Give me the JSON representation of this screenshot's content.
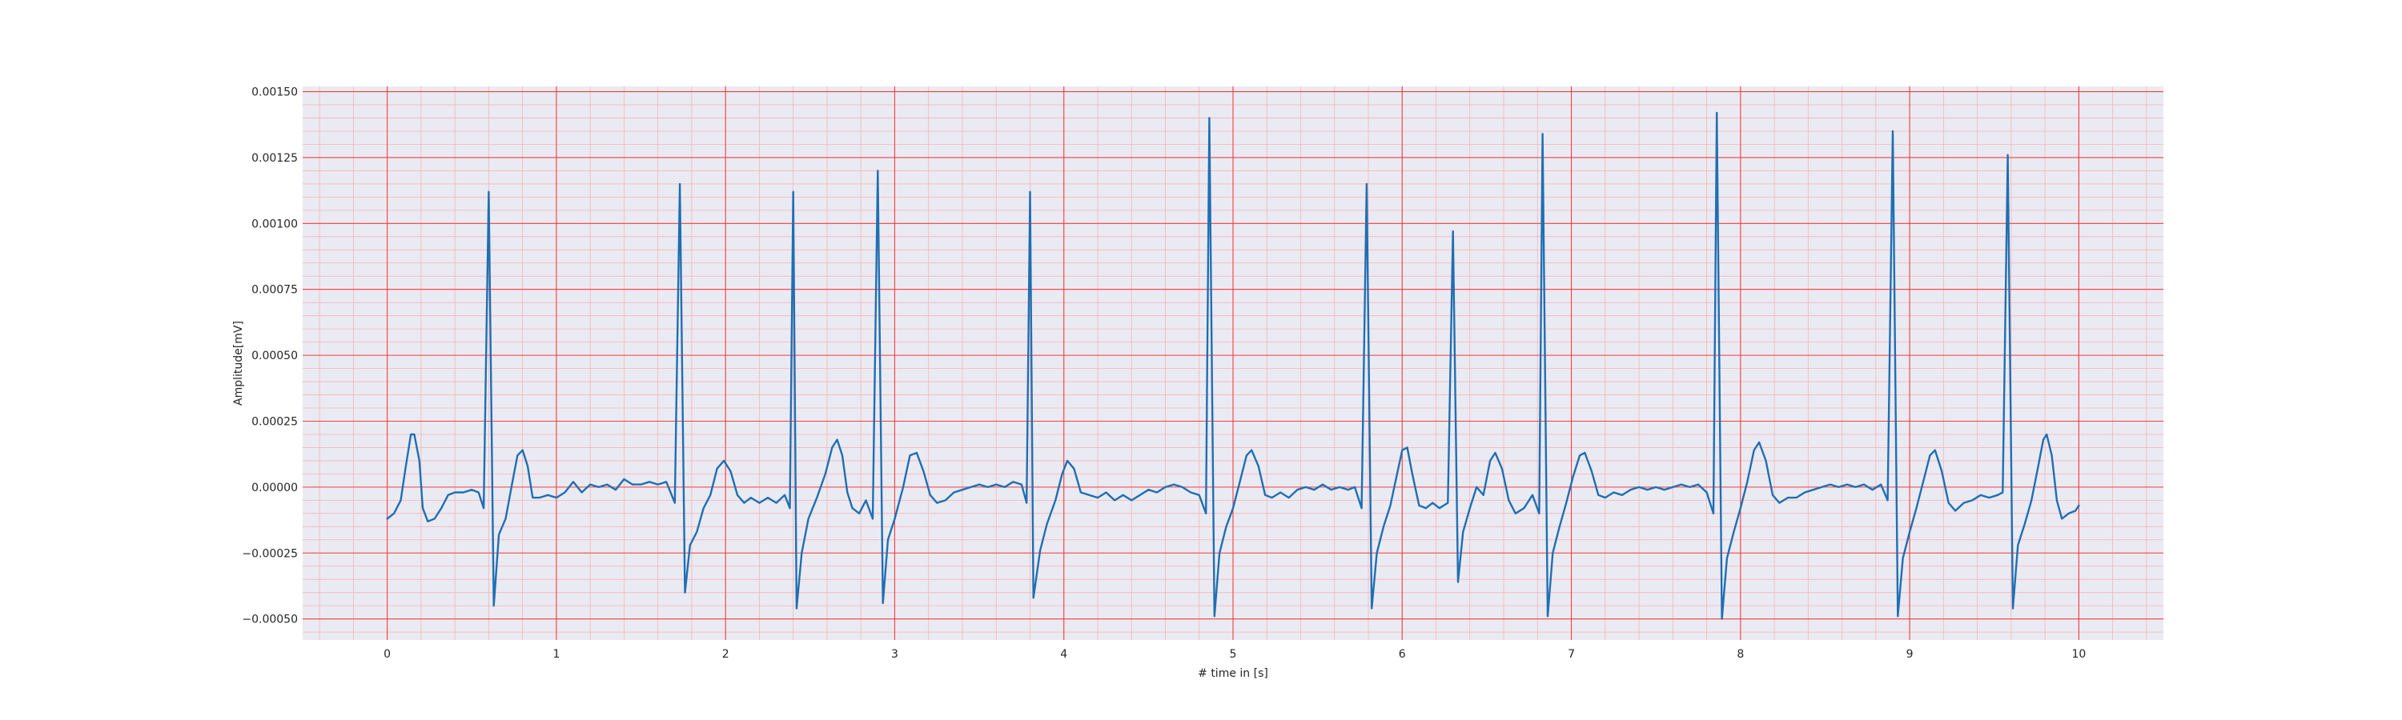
{
  "chart_data": {
    "type": "line",
    "title": "",
    "xlabel": "# time in [s]",
    "ylabel": "Amplitude[mV]",
    "xlim": [
      -0.5,
      10.5
    ],
    "ylim": [
      -0.00058,
      0.00152
    ],
    "x_ticks": [
      0,
      1,
      2,
      3,
      4,
      5,
      6,
      7,
      8,
      9,
      10
    ],
    "x_tick_labels": [
      "0",
      "1",
      "2",
      "3",
      "4",
      "5",
      "6",
      "7",
      "8",
      "9",
      "10"
    ],
    "y_ticks": [
      -0.0005,
      -0.00025,
      0.0,
      0.00025,
      0.0005,
      0.00075,
      0.001,
      0.00125,
      0.0015
    ],
    "y_tick_labels": [
      "−0.00050",
      "−0.00025",
      "0.00000",
      "0.00025",
      "0.00050",
      "0.00075",
      "0.00100",
      "0.00125",
      "0.00150"
    ],
    "grid": {
      "major": true,
      "minor": true,
      "major_color": "#f04040",
      "minor_color": "#f5b5b5"
    },
    "background_color": "#eaeaf2",
    "series": [
      {
        "color": "#1f6fb2",
        "points": [
          [
            0,
            -0.00012
          ],
          [
            0.04,
            -0.0001
          ],
          [
            0.08,
            -5e-05
          ],
          [
            0.11,
            8e-05
          ],
          [
            0.14,
            0.0002
          ],
          [
            0.16,
            0.0002
          ],
          [
            0.19,
            0.0001
          ],
          [
            0.21,
            -8e-05
          ],
          [
            0.24,
            -0.00013
          ],
          [
            0.28,
            -0.00012
          ],
          [
            0.32,
            -8e-05
          ],
          [
            0.36,
            -3e-05
          ],
          [
            0.4,
            -2e-05
          ],
          [
            0.45,
            -2e-05
          ],
          [
            0.5,
            -1e-05
          ],
          [
            0.54,
            -2e-05
          ],
          [
            0.57,
            -8e-05
          ],
          [
            0.6,
            0.00112
          ],
          [
            0.63,
            -0.00045
          ],
          [
            0.66,
            -0.00018
          ],
          [
            0.7,
            -0.00012
          ],
          [
            0.74,
            2e-05
          ],
          [
            0.77,
            0.00012
          ],
          [
            0.8,
            0.00014
          ],
          [
            0.83,
            8e-05
          ],
          [
            0.86,
            -4e-05
          ],
          [
            0.9,
            -4e-05
          ],
          [
            0.95,
            -3e-05
          ],
          [
            1.0,
            -4e-05
          ],
          [
            1.05,
            -2e-05
          ],
          [
            1.1,
            2e-05
          ],
          [
            1.15,
            -2e-05
          ],
          [
            1.2,
            1e-05
          ],
          [
            1.25,
            0.0
          ],
          [
            1.3,
            1e-05
          ],
          [
            1.35,
            -1e-05
          ],
          [
            1.4,
            3e-05
          ],
          [
            1.45,
            1e-05
          ],
          [
            1.5,
            1e-05
          ],
          [
            1.55,
            2e-05
          ],
          [
            1.6,
            1e-05
          ],
          [
            1.65,
            2e-05
          ],
          [
            1.7,
            -6e-05
          ],
          [
            1.73,
            0.00115
          ],
          [
            1.76,
            -0.0004
          ],
          [
            1.79,
            -0.00022
          ],
          [
            1.83,
            -0.00017
          ],
          [
            1.87,
            -8e-05
          ],
          [
            1.91,
            -3e-05
          ],
          [
            1.95,
            7e-05
          ],
          [
            1.99,
            0.0001
          ],
          [
            2.03,
            6e-05
          ],
          [
            2.07,
            -3e-05
          ],
          [
            2.11,
            -6e-05
          ],
          [
            2.15,
            -4e-05
          ],
          [
            2.2,
            -6e-05
          ],
          [
            2.25,
            -4e-05
          ],
          [
            2.3,
            -6e-05
          ],
          [
            2.35,
            -3e-05
          ],
          [
            2.38,
            -8e-05
          ],
          [
            2.4,
            0.00112
          ],
          [
            2.42,
            -0.00046
          ],
          [
            2.45,
            -0.00025
          ],
          [
            2.49,
            -0.00012
          ],
          [
            2.54,
            -4e-05
          ],
          [
            2.59,
            5e-05
          ],
          [
            2.63,
            0.00015
          ],
          [
            2.66,
            0.00018
          ],
          [
            2.69,
            0.00012
          ],
          [
            2.72,
            -2e-05
          ],
          [
            2.75,
            -8e-05
          ],
          [
            2.79,
            -0.0001
          ],
          [
            2.83,
            -5e-05
          ],
          [
            2.87,
            -0.00012
          ],
          [
            2.9,
            0.0012
          ],
          [
            2.93,
            -0.00044
          ],
          [
            2.96,
            -0.0002
          ],
          [
            3.0,
            -0.00012
          ],
          [
            3.05,
            0.0
          ],
          [
            3.09,
            0.00012
          ],
          [
            3.13,
            0.00013
          ],
          [
            3.17,
            6e-05
          ],
          [
            3.21,
            -3e-05
          ],
          [
            3.25,
            -6e-05
          ],
          [
            3.3,
            -5e-05
          ],
          [
            3.35,
            -2e-05
          ],
          [
            3.4,
            -1e-05
          ],
          [
            3.45,
            0.0
          ],
          [
            3.5,
            1e-05
          ],
          [
            3.55,
            0.0
          ],
          [
            3.6,
            1e-05
          ],
          [
            3.65,
            0.0
          ],
          [
            3.7,
            2e-05
          ],
          [
            3.75,
            1e-05
          ],
          [
            3.78,
            -6e-05
          ],
          [
            3.8,
            0.00112
          ],
          [
            3.82,
            -0.00042
          ],
          [
            3.86,
            -0.00024
          ],
          [
            3.9,
            -0.00014
          ],
          [
            3.95,
            -5e-05
          ],
          [
            3.99,
            5e-05
          ],
          [
            4.02,
            0.0001
          ],
          [
            4.06,
            7e-05
          ],
          [
            4.1,
            -2e-05
          ],
          [
            4.15,
            -3e-05
          ],
          [
            4.2,
            -4e-05
          ],
          [
            4.25,
            -2e-05
          ],
          [
            4.3,
            -5e-05
          ],
          [
            4.35,
            -3e-05
          ],
          [
            4.4,
            -5e-05
          ],
          [
            4.45,
            -3e-05
          ],
          [
            4.5,
            -1e-05
          ],
          [
            4.55,
            -2e-05
          ],
          [
            4.6,
            0.0
          ],
          [
            4.65,
            1e-05
          ],
          [
            4.7,
            0.0
          ],
          [
            4.75,
            -2e-05
          ],
          [
            4.8,
            -3e-05
          ],
          [
            4.84,
            -0.0001
          ],
          [
            4.86,
            0.0014
          ],
          [
            4.89,
            -0.00049
          ],
          [
            4.92,
            -0.00025
          ],
          [
            4.96,
            -0.00015
          ],
          [
            5.0,
            -8e-05
          ],
          [
            5.04,
            2e-05
          ],
          [
            5.08,
            0.00012
          ],
          [
            5.11,
            0.00014
          ],
          [
            5.15,
            8e-05
          ],
          [
            5.19,
            -3e-05
          ],
          [
            5.23,
            -4e-05
          ],
          [
            5.28,
            -2e-05
          ],
          [
            5.33,
            -4e-05
          ],
          [
            5.38,
            -1e-05
          ],
          [
            5.43,
            0.0
          ],
          [
            5.48,
            -1e-05
          ],
          [
            5.53,
            1e-05
          ],
          [
            5.58,
            -1e-05
          ],
          [
            5.63,
            0.0
          ],
          [
            5.68,
            -1e-05
          ],
          [
            5.72,
            0.0
          ],
          [
            5.76,
            -8e-05
          ],
          [
            5.79,
            0.00115
          ],
          [
            5.82,
            -0.00046
          ],
          [
            5.85,
            -0.00025
          ],
          [
            5.89,
            -0.00015
          ],
          [
            5.93,
            -7e-05
          ],
          [
            5.97,
            5e-05
          ],
          [
            6.0,
            0.00014
          ],
          [
            6.03,
            0.00015
          ],
          [
            6.06,
            5e-05
          ],
          [
            6.1,
            -7e-05
          ],
          [
            6.14,
            -8e-05
          ],
          [
            6.18,
            -6e-05
          ],
          [
            6.22,
            -8e-05
          ],
          [
            6.27,
            -6e-05
          ],
          [
            6.3,
            0.00097
          ],
          [
            6.33,
            -0.00036
          ],
          [
            6.36,
            -0.00017
          ],
          [
            6.4,
            -8e-05
          ],
          [
            6.44,
            0.0
          ],
          [
            6.48,
            -3e-05
          ],
          [
            6.52,
            0.0001
          ],
          [
            6.55,
            0.00013
          ],
          [
            6.59,
            7e-05
          ],
          [
            6.63,
            -5e-05
          ],
          [
            6.67,
            -0.0001
          ],
          [
            6.72,
            -8e-05
          ],
          [
            6.77,
            -3e-05
          ],
          [
            6.81,
            -0.0001
          ],
          [
            6.83,
            0.00134
          ],
          [
            6.86,
            -0.00049
          ],
          [
            6.89,
            -0.00025
          ],
          [
            6.93,
            -0.00015
          ],
          [
            6.97,
            -6e-05
          ],
          [
            7.01,
            4e-05
          ],
          [
            7.05,
            0.00012
          ],
          [
            7.08,
            0.00013
          ],
          [
            7.12,
            6e-05
          ],
          [
            7.16,
            -3e-05
          ],
          [
            7.2,
            -4e-05
          ],
          [
            7.25,
            -2e-05
          ],
          [
            7.3,
            -3e-05
          ],
          [
            7.35,
            -1e-05
          ],
          [
            7.4,
            0.0
          ],
          [
            7.45,
            -1e-05
          ],
          [
            7.5,
            0.0
          ],
          [
            7.55,
            -1e-05
          ],
          [
            7.6,
            0.0
          ],
          [
            7.65,
            1e-05
          ],
          [
            7.7,
            0.0
          ],
          [
            7.75,
            1e-05
          ],
          [
            7.8,
            -2e-05
          ],
          [
            7.84,
            -0.0001
          ],
          [
            7.86,
            0.00142
          ],
          [
            7.89,
            -0.0005
          ],
          [
            7.92,
            -0.00027
          ],
          [
            7.96,
            -0.00017
          ],
          [
            8.0,
            -8e-05
          ],
          [
            8.04,
            2e-05
          ],
          [
            8.08,
            0.00014
          ],
          [
            8.11,
            0.00017
          ],
          [
            8.15,
            0.0001
          ],
          [
            8.19,
            -3e-05
          ],
          [
            8.23,
            -6e-05
          ],
          [
            8.28,
            -4e-05
          ],
          [
            8.33,
            -4e-05
          ],
          [
            8.38,
            -2e-05
          ],
          [
            8.43,
            -1e-05
          ],
          [
            8.48,
            0.0
          ],
          [
            8.53,
            1e-05
          ],
          [
            8.58,
            0.0
          ],
          [
            8.63,
            1e-05
          ],
          [
            8.68,
            0.0
          ],
          [
            8.73,
            1e-05
          ],
          [
            8.78,
            -1e-05
          ],
          [
            8.83,
            1e-05
          ],
          [
            8.87,
            -5e-05
          ],
          [
            8.9,
            0.00135
          ],
          [
            8.93,
            -0.00049
          ],
          [
            8.96,
            -0.00027
          ],
          [
            9.0,
            -0.00017
          ],
          [
            9.04,
            -8e-05
          ],
          [
            9.08,
            2e-05
          ],
          [
            9.12,
            0.00012
          ],
          [
            9.15,
            0.00014
          ],
          [
            9.19,
            6e-05
          ],
          [
            9.23,
            -6e-05
          ],
          [
            9.27,
            -9e-05
          ],
          [
            9.32,
            -6e-05
          ],
          [
            9.37,
            -5e-05
          ],
          [
            9.42,
            -3e-05
          ],
          [
            9.47,
            -4e-05
          ],
          [
            9.52,
            -3e-05
          ],
          [
            9.55,
            -2e-05
          ],
          [
            9.58,
            0.00126
          ],
          [
            9.61,
            -0.00046
          ],
          [
            9.64,
            -0.00022
          ],
          [
            9.68,
            -0.00014
          ],
          [
            9.72,
            -5e-05
          ],
          [
            9.76,
            8e-05
          ],
          [
            9.79,
            0.00018
          ],
          [
            9.81,
            0.0002
          ],
          [
            9.84,
            0.00012
          ],
          [
            9.87,
            -5e-05
          ],
          [
            9.9,
            -0.00012
          ],
          [
            9.94,
            -0.0001
          ],
          [
            9.98,
            -9e-05
          ],
          [
            10.0,
            -7e-05
          ]
        ]
      }
    ]
  }
}
